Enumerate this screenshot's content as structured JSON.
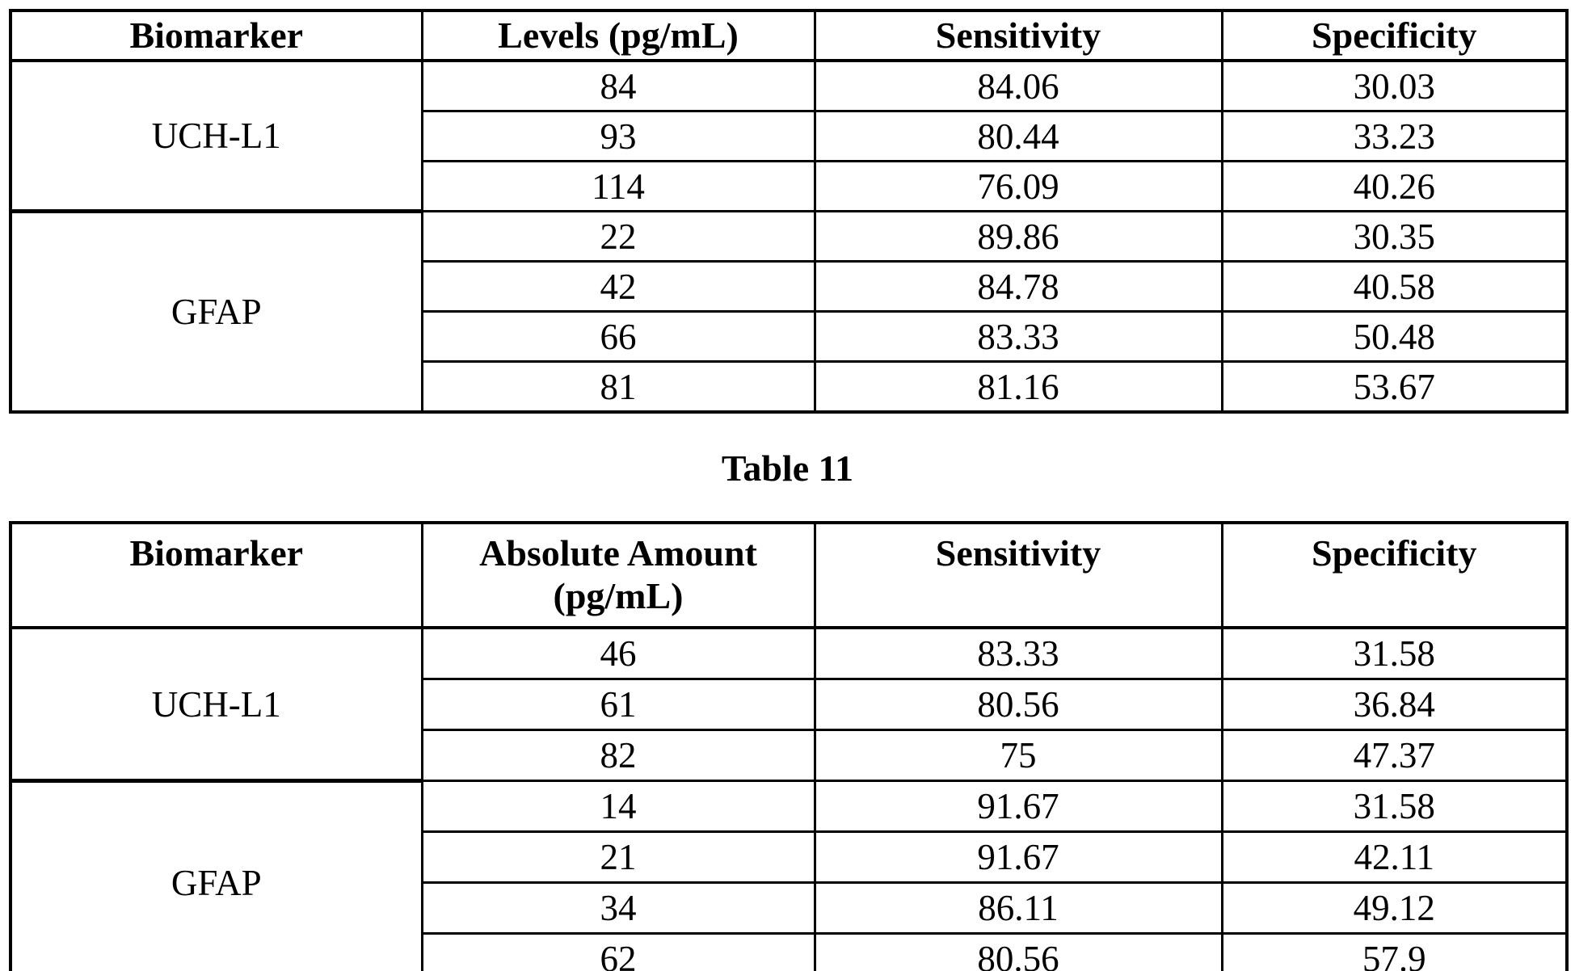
{
  "page": {
    "background": "#ffffff",
    "text_color": "#000000",
    "caption": "Table 11"
  },
  "table1": {
    "headers": {
      "biomarker": "Biomarker",
      "levels": "Levels (pg/mL)",
      "sensitivity": "Sensitivity",
      "specificity": "Specificity"
    },
    "groups": [
      {
        "biomarker": "UCH-L1",
        "rows": [
          {
            "level": "84",
            "sensitivity": "84.06",
            "specificity": "30.03"
          },
          {
            "level": "93",
            "sensitivity": "80.44",
            "specificity": "33.23"
          },
          {
            "level": "114",
            "sensitivity": "76.09",
            "specificity": "40.26"
          }
        ]
      },
      {
        "biomarker": "GFAP",
        "rows": [
          {
            "level": "22",
            "sensitivity": "89.86",
            "specificity": "30.35"
          },
          {
            "level": "42",
            "sensitivity": "84.78",
            "specificity": "40.58"
          },
          {
            "level": "66",
            "sensitivity": "83.33",
            "specificity": "50.48"
          },
          {
            "level": "81",
            "sensitivity": "81.16",
            "specificity": "53.67"
          }
        ]
      }
    ]
  },
  "table2": {
    "headers": {
      "biomarker": "Biomarker",
      "amount_line1": "Absolute Amount",
      "amount_line2": "(pg/mL)",
      "sensitivity": "Sensitivity",
      "specificity": "Specificity"
    },
    "groups": [
      {
        "biomarker": "UCH-L1",
        "rows": [
          {
            "level": "46",
            "sensitivity": "83.33",
            "specificity": "31.58"
          },
          {
            "level": "61",
            "sensitivity": "80.56",
            "specificity": "36.84"
          },
          {
            "level": "82",
            "sensitivity": "75",
            "specificity": "47.37"
          }
        ]
      },
      {
        "biomarker": "GFAP",
        "rows": [
          {
            "level": "14",
            "sensitivity": "91.67",
            "specificity": "31.58"
          },
          {
            "level": "21",
            "sensitivity": "91.67",
            "specificity": "42.11"
          },
          {
            "level": "34",
            "sensitivity": "86.11",
            "specificity": "49.12"
          },
          {
            "level": "62",
            "sensitivity": "80.56",
            "specificity": "57.9"
          }
        ]
      }
    ]
  }
}
